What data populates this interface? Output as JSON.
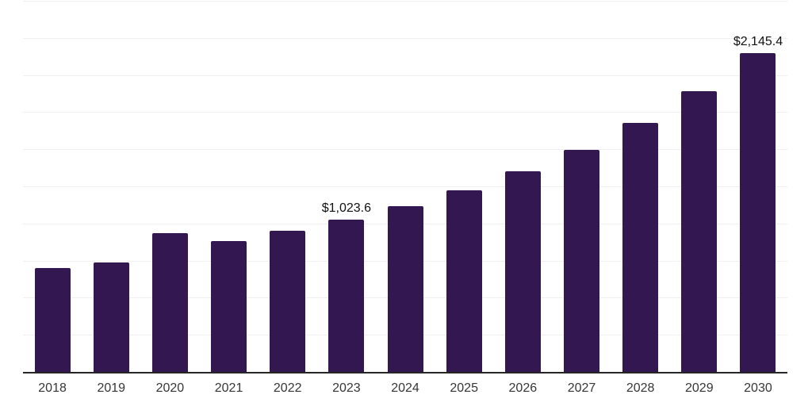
{
  "chart_data": {
    "type": "bar",
    "title": "",
    "xlabel": "",
    "ylabel": "",
    "categories": [
      "2018",
      "2019",
      "2020",
      "2021",
      "2022",
      "2023",
      "2024",
      "2025",
      "2026",
      "2027",
      "2028",
      "2029",
      "2030"
    ],
    "values": [
      700,
      736,
      934,
      879,
      950,
      1023.6,
      1117,
      1224,
      1352,
      1497,
      1679,
      1893,
      2145.4
    ],
    "bar_labels": [
      "",
      "",
      "",
      "",
      "",
      "$1,023.6",
      "",
      "",
      "",
      "",
      "",
      "",
      "$2,145.4"
    ],
    "ylim": [
      0,
      2500
    ],
    "grid_step": 250,
    "grid": "horizontal-only",
    "legend_position": "none",
    "colors": {
      "bar": "#331750",
      "gridline": "#f0f0f0",
      "axis_line": "#262626",
      "value_label": "#111111",
      "tick_label": "#363636",
      "background": "#ffffff"
    }
  }
}
